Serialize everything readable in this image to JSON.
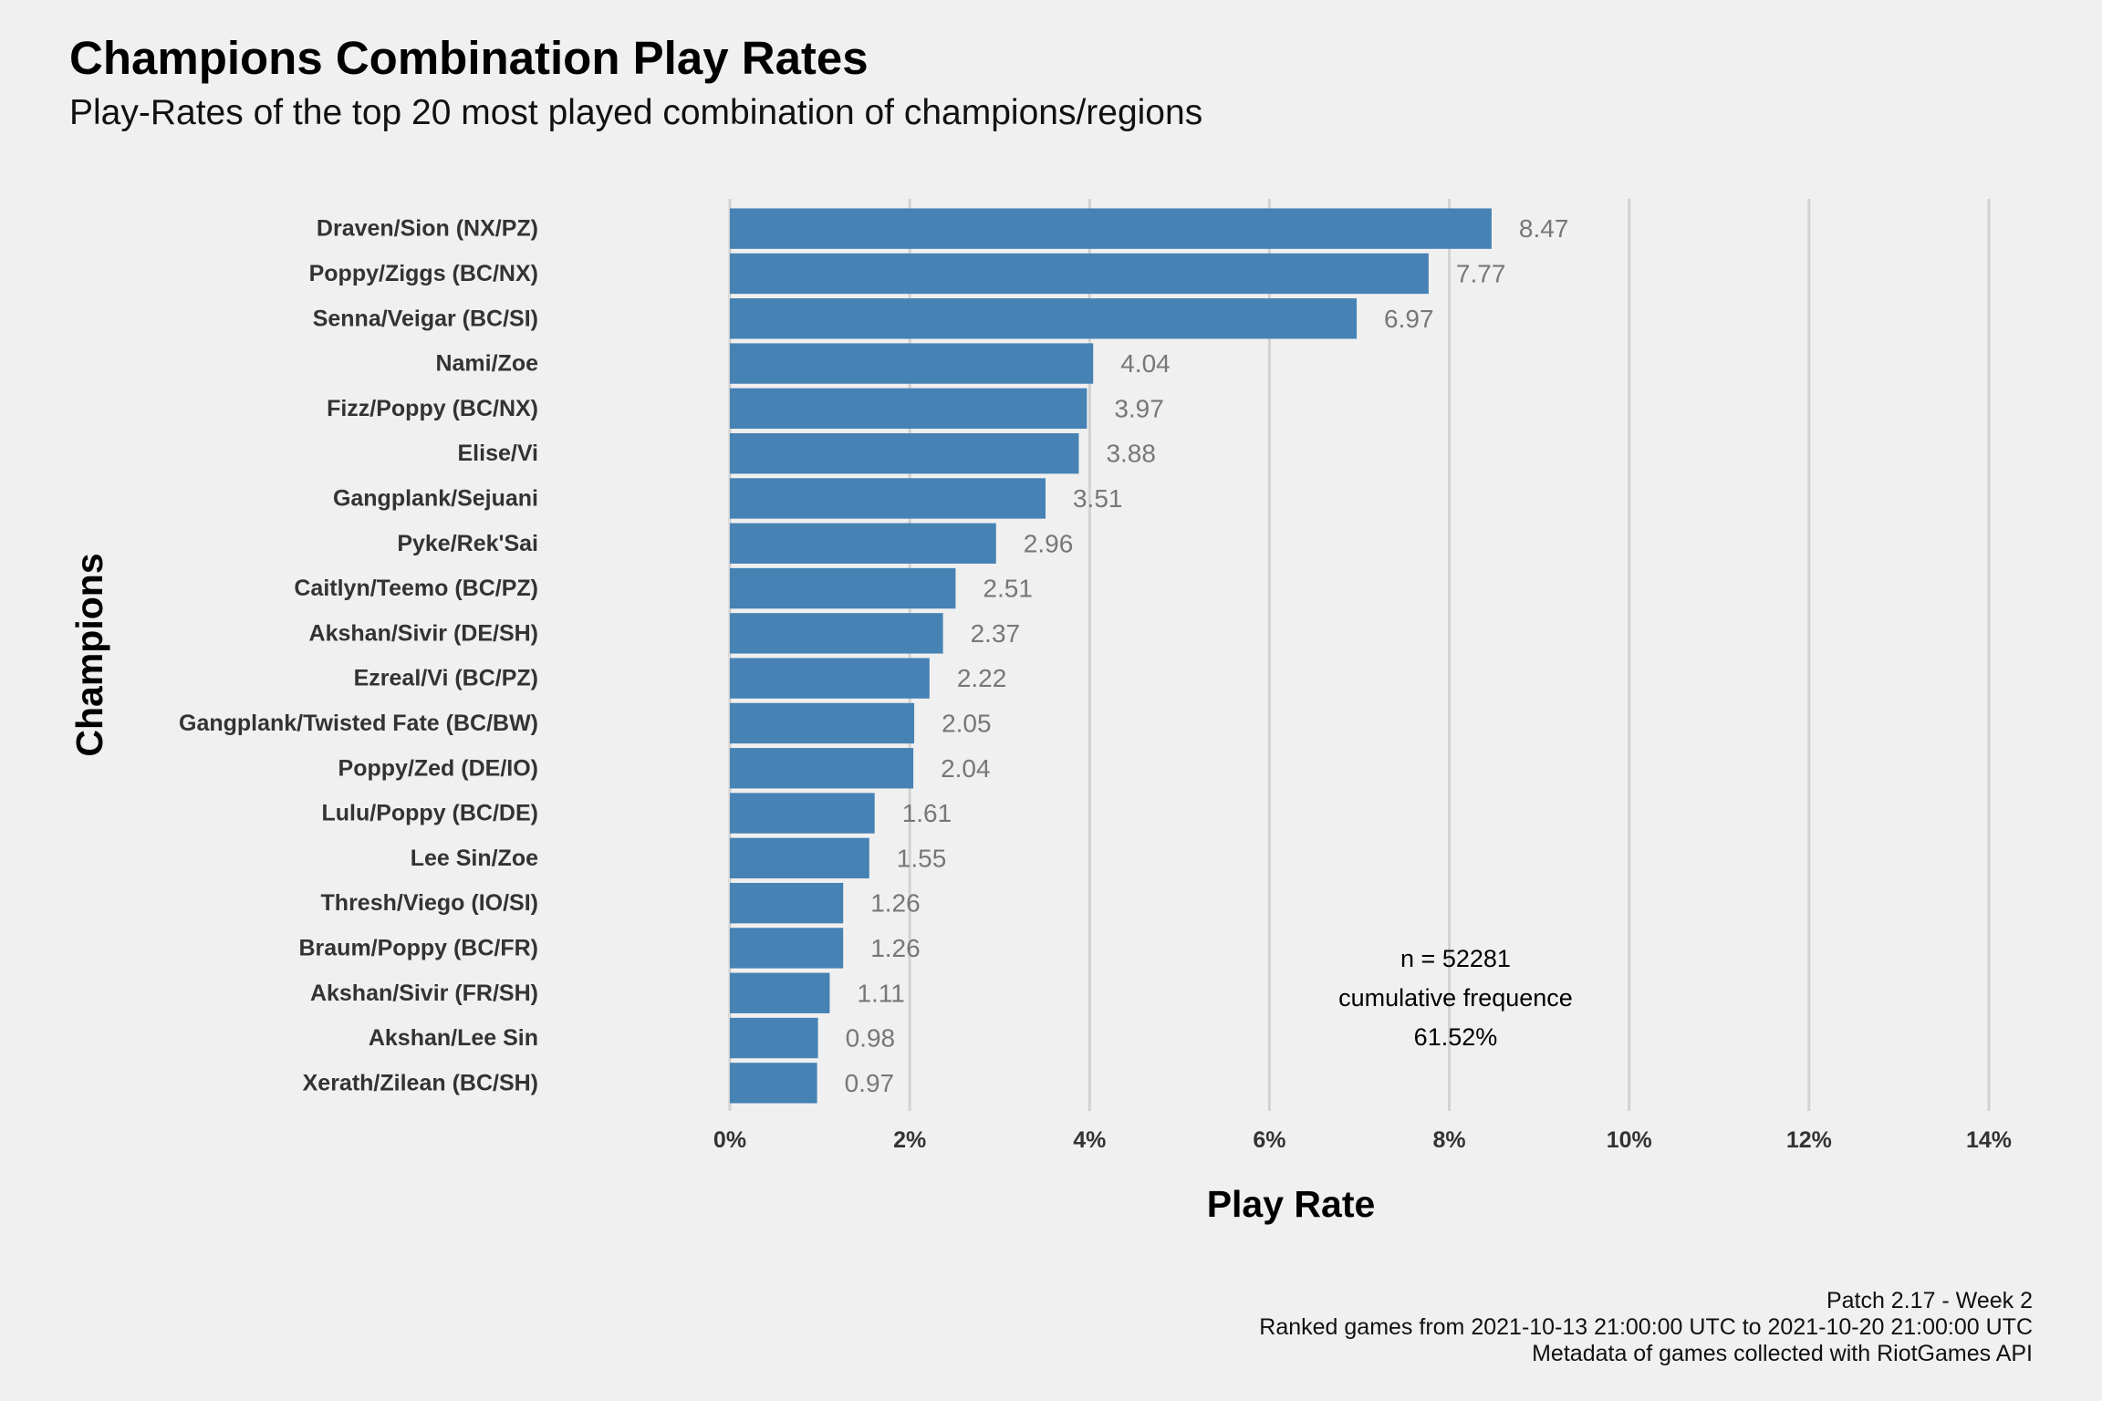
{
  "caption": {
    "line1": "Patch 2.17 - Week 2",
    "line2": "Ranked games from 2021-10-13 21:00:00 UTC to 2021-10-20 21:00:00 UTC",
    "line3": "Metadata of games collected with RiotGames API"
  },
  "colors": {
    "bar": "#4682b4",
    "background": "#f0f0f0",
    "grid": "#d2d2d2",
    "value_label": "#777777"
  },
  "chart_data": {
    "type": "bar",
    "orientation": "horizontal",
    "title": "Champions Combination Play Rates",
    "subtitle": "Play-Rates of the top 20 most played combination of champions/regions",
    "xlabel": "Play Rate",
    "ylabel": "Champions",
    "xlim": [
      0,
      14
    ],
    "x_ticks": [
      0,
      2,
      4,
      6,
      8,
      10,
      12,
      14
    ],
    "x_tick_labels": [
      "0%",
      "2%",
      "4%",
      "6%",
      "8%",
      "10%",
      "12%",
      "14%"
    ],
    "grid": true,
    "legend": "none",
    "categories": [
      "Draven/Sion (NX/PZ)",
      "Poppy/Ziggs (BC/NX)",
      "Senna/Veigar (BC/SI)",
      "Nami/Zoe",
      "Fizz/Poppy (BC/NX)",
      "Elise/Vi",
      "Gangplank/Sejuani",
      "Pyke/Rek'Sai",
      "Caitlyn/Teemo (BC/PZ)",
      "Akshan/Sivir (DE/SH)",
      "Ezreal/Vi (BC/PZ)",
      "Gangplank/Twisted Fate (BC/BW)",
      "Poppy/Zed (DE/IO)",
      "Lulu/Poppy (BC/DE)",
      "Lee Sin/Zoe",
      "Thresh/Viego (IO/SI)",
      "Braum/Poppy (BC/FR)",
      "Akshan/Sivir (FR/SH)",
      "Akshan/Lee Sin",
      "Xerath/Zilean (BC/SH)"
    ],
    "values": [
      8.47,
      7.77,
      6.97,
      4.04,
      3.97,
      3.88,
      3.51,
      2.96,
      2.51,
      2.37,
      2.22,
      2.05,
      2.04,
      1.61,
      1.55,
      1.26,
      1.26,
      1.11,
      0.98,
      0.97
    ],
    "value_labels": [
      "8.47",
      "7.77",
      "6.97",
      "4.04",
      "3.97",
      "3.88",
      "3.51",
      "2.96",
      "2.51",
      "2.37",
      "2.22",
      "2.05",
      "2.04",
      "1.61",
      "1.55",
      "1.26",
      "1.26",
      "1.11",
      "0.98",
      "0.97"
    ],
    "annotation": {
      "lines": [
        "n = 52281",
        "cumulative frequence",
        "61.52%"
      ],
      "x": 8.07
    }
  }
}
